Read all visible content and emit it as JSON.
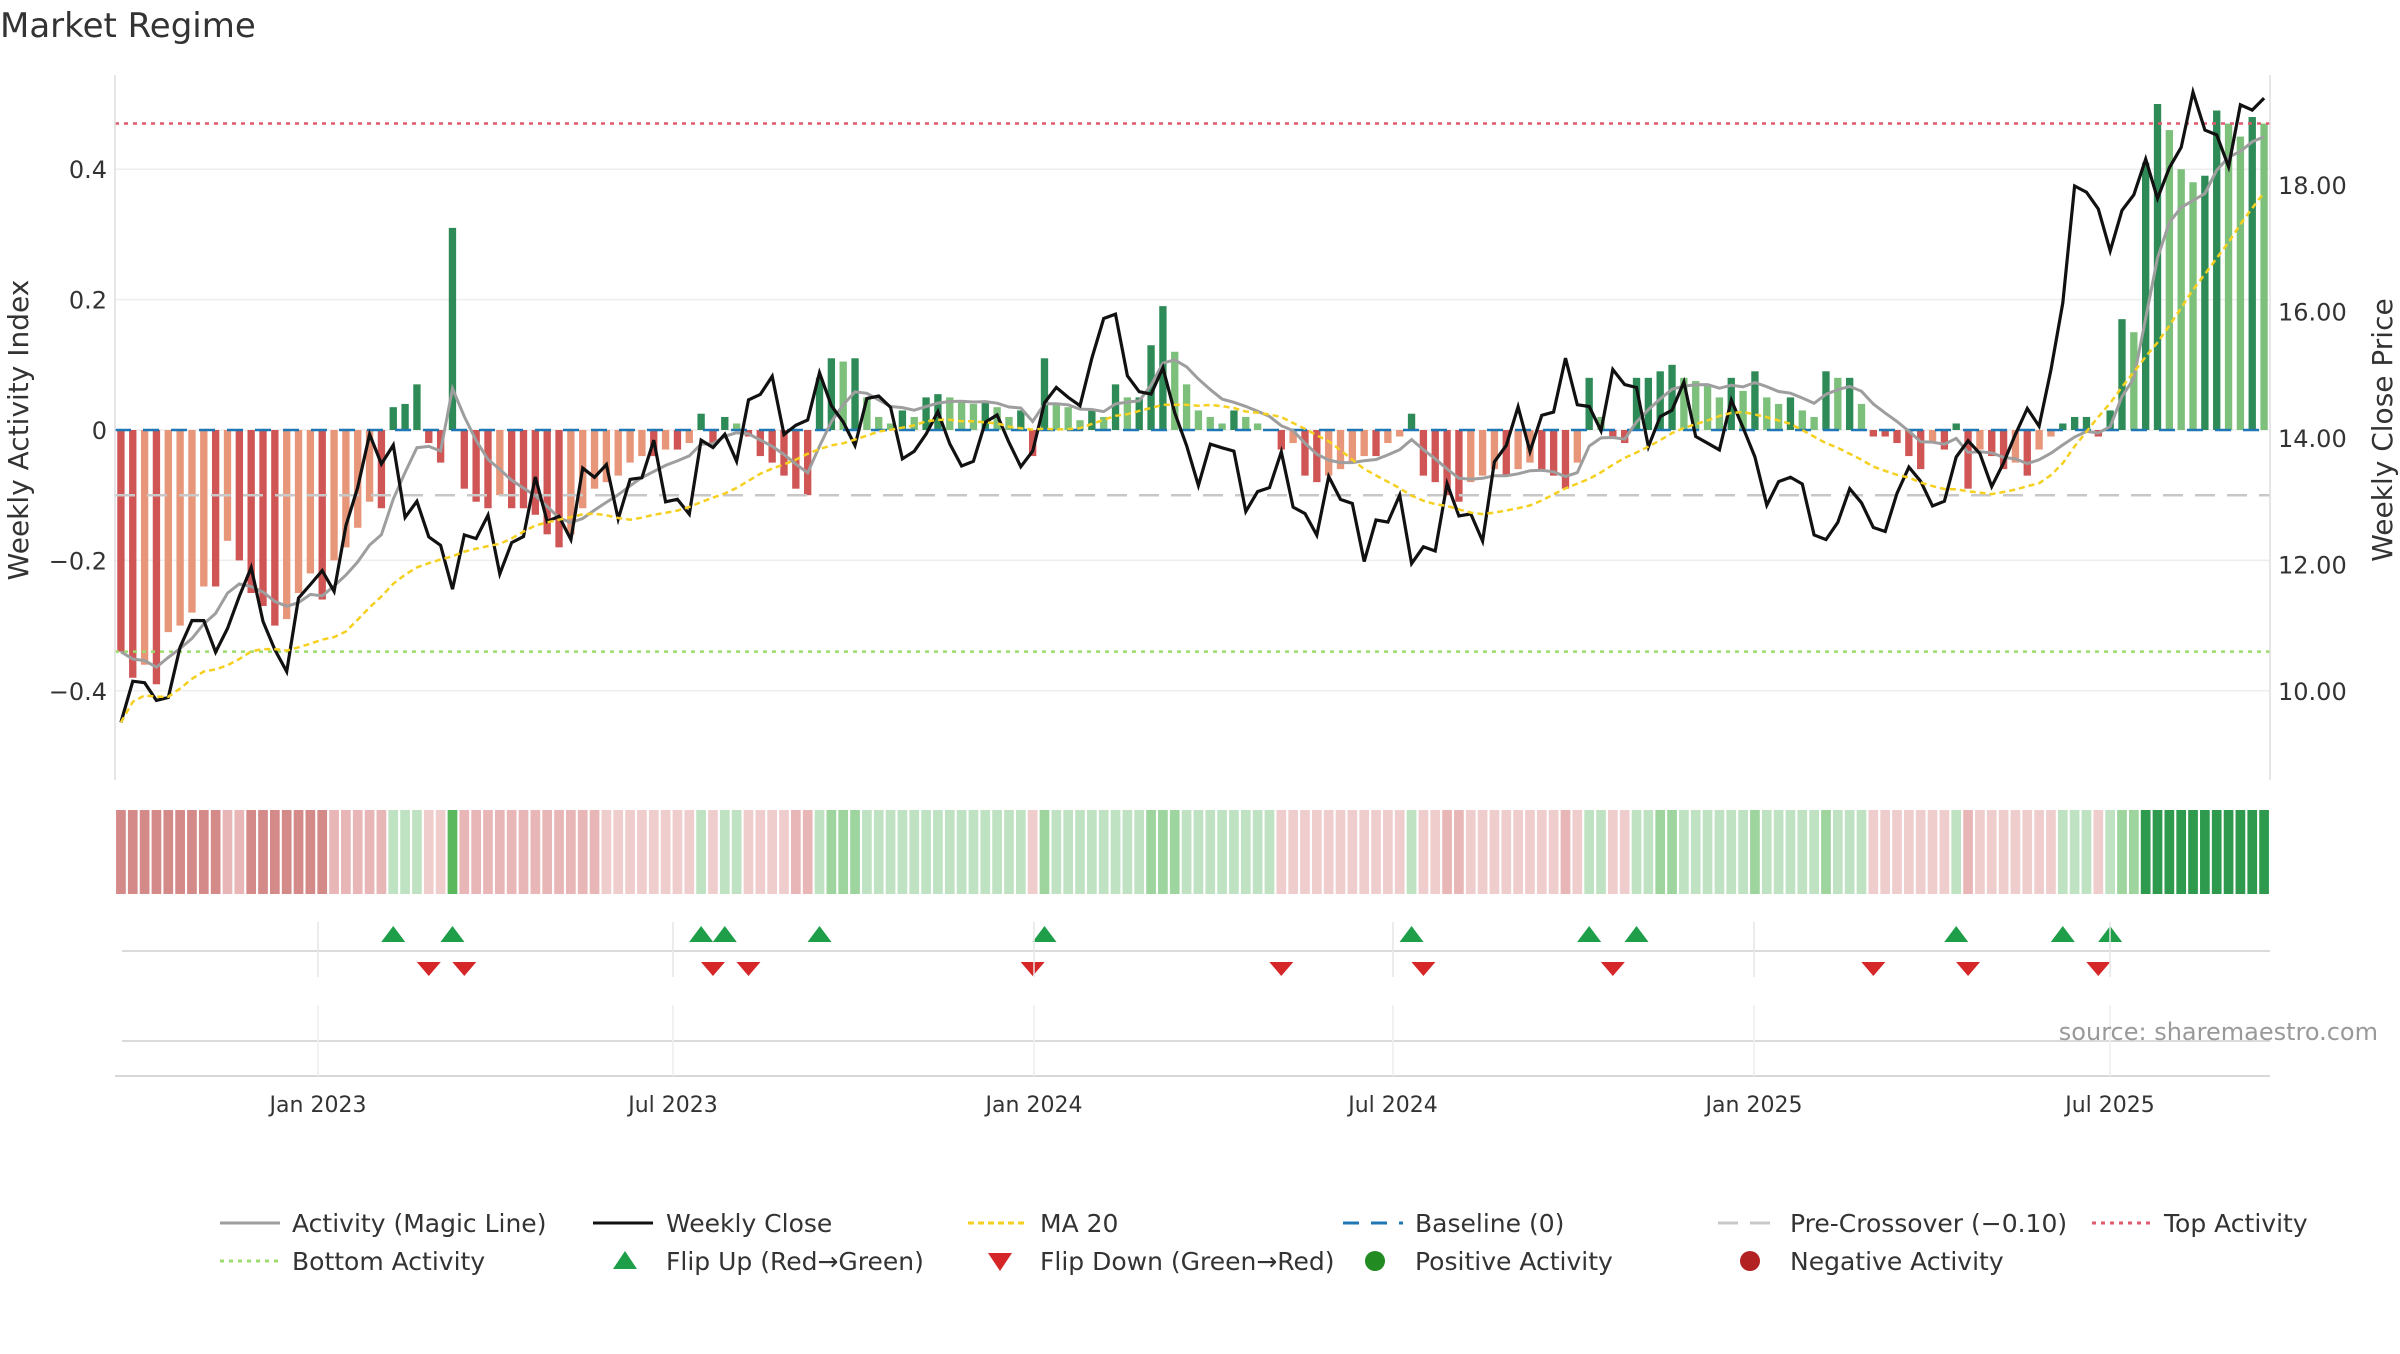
{
  "chart_data": {
    "type": "bar",
    "title": "Market Regime",
    "source": "source: sharemaestro.com",
    "x_tick_labels": [
      "Jan 2023",
      "Jul 2023",
      "Jan 2024",
      "Jul 2024",
      "Jan 2025",
      "Jul 2025"
    ],
    "left_axis": {
      "label": "Weekly Activity Index",
      "ylim": [
        -0.54,
        0.54
      ],
      "ticks": [
        -0.4,
        -0.2,
        0,
        0.2,
        0.4
      ],
      "tick_labels": [
        "−0.4",
        "−0.2",
        "0",
        "0.2",
        "0.4"
      ]
    },
    "right_axis": {
      "label": "Weekly Close Price",
      "ylim": [
        8.8,
        19.7
      ],
      "ticks": [
        10,
        12,
        14,
        16,
        18
      ],
      "tick_labels": [
        "10.00",
        "12.00",
        "14.00",
        "16.00",
        "18.00"
      ]
    },
    "reference_lines": {
      "top_activity": 0.47,
      "bottom_activity": -0.34,
      "baseline": 0,
      "pre_crossover": -0.1
    },
    "activity_index": [
      -0.34,
      -0.38,
      -0.36,
      -0.39,
      -0.31,
      -0.3,
      -0.28,
      -0.24,
      -0.24,
      -0.17,
      -0.2,
      -0.25,
      -0.27,
      -0.3,
      -0.29,
      -0.25,
      -0.22,
      -0.26,
      -0.2,
      -0.18,
      -0.15,
      -0.11,
      -0.12,
      0.035,
      0.04,
      0.07,
      -0.02,
      -0.05,
      0.31,
      -0.09,
      -0.11,
      -0.12,
      -0.1,
      -0.12,
      -0.12,
      -0.13,
      -0.16,
      -0.18,
      -0.16,
      -0.12,
      -0.09,
      -0.08,
      -0.07,
      -0.05,
      -0.04,
      -0.04,
      -0.03,
      -0.03,
      -0.02,
      0.025,
      -0.02,
      0.02,
      0.01,
      -0.01,
      -0.04,
      -0.05,
      -0.07,
      -0.09,
      -0.1,
      0.08,
      0.11,
      0.105,
      0.11,
      0.05,
      0.02,
      0.01,
      0.03,
      0.02,
      0.05,
      0.055,
      0.05,
      0.045,
      0.04,
      0.045,
      0.035,
      0.02,
      0.03,
      -0.04,
      0.11,
      0.04,
      0.035,
      0.015,
      0.03,
      0.02,
      0.07,
      0.05,
      0.05,
      0.13,
      0.19,
      0.12,
      0.07,
      0.03,
      0.02,
      0.01,
      0.03,
      0.02,
      0.01,
      0.0,
      -0.03,
      -0.02,
      -0.07,
      -0.08,
      -0.07,
      -0.06,
      -0.05,
      -0.04,
      -0.04,
      -0.02,
      -0.01,
      0.025,
      -0.07,
      -0.08,
      -0.1,
      -0.11,
      -0.08,
      -0.07,
      -0.06,
      -0.07,
      -0.06,
      -0.05,
      -0.06,
      -0.07,
      -0.09,
      -0.05,
      0.08,
      0.02,
      -0.01,
      -0.02,
      0.08,
      0.08,
      0.09,
      0.1,
      0.08,
      0.075,
      0.07,
      0.05,
      0.08,
      0.06,
      0.09,
      0.05,
      0.04,
      0.05,
      0.03,
      0.02,
      0.09,
      0.08,
      0.08,
      0.04,
      -0.01,
      -0.01,
      -0.02,
      -0.04,
      -0.06,
      -0.02,
      -0.03,
      0.01,
      -0.09,
      -0.03,
      -0.04,
      -0.06,
      -0.05,
      -0.07,
      -0.03,
      -0.01,
      0.01,
      0.02,
      0.02,
      -0.01,
      0.03,
      0.17,
      0.15,
      0.41,
      0.5,
      0.46,
      0.4,
      0.38,
      0.39,
      0.49,
      0.47,
      0.45,
      0.48,
      0.47
    ]
  },
  "legend": {
    "activity_line": "Activity (Magic Line)",
    "weekly_close": "Weekly Close",
    "ma20": "MA 20",
    "baseline": "Baseline (0)",
    "pre_crossover": "Pre-Crossover (−0.10)",
    "top_activity": "Top Activity",
    "bottom_activity": "Bottom Activity",
    "flip_up": "Flip Up (Red→Green)",
    "flip_down": "Flip Down (Green→Red)",
    "positive_activity": "Positive Activity",
    "negative_activity": "Negative Activity"
  },
  "colors": {
    "activity_line": "#9e9e9e",
    "weekly_close": "#111111",
    "ma20": "#f5d020",
    "baseline": "#1f77b4",
    "pre_crossover": "#c8c8c8",
    "top_activity": "#e05a6e",
    "bottom_activity": "#9ddc6e",
    "flip_up": "#1e9e48",
    "flip_down": "#d62728",
    "positive_activity": "#228b22",
    "negative_activity": "#b22222"
  }
}
